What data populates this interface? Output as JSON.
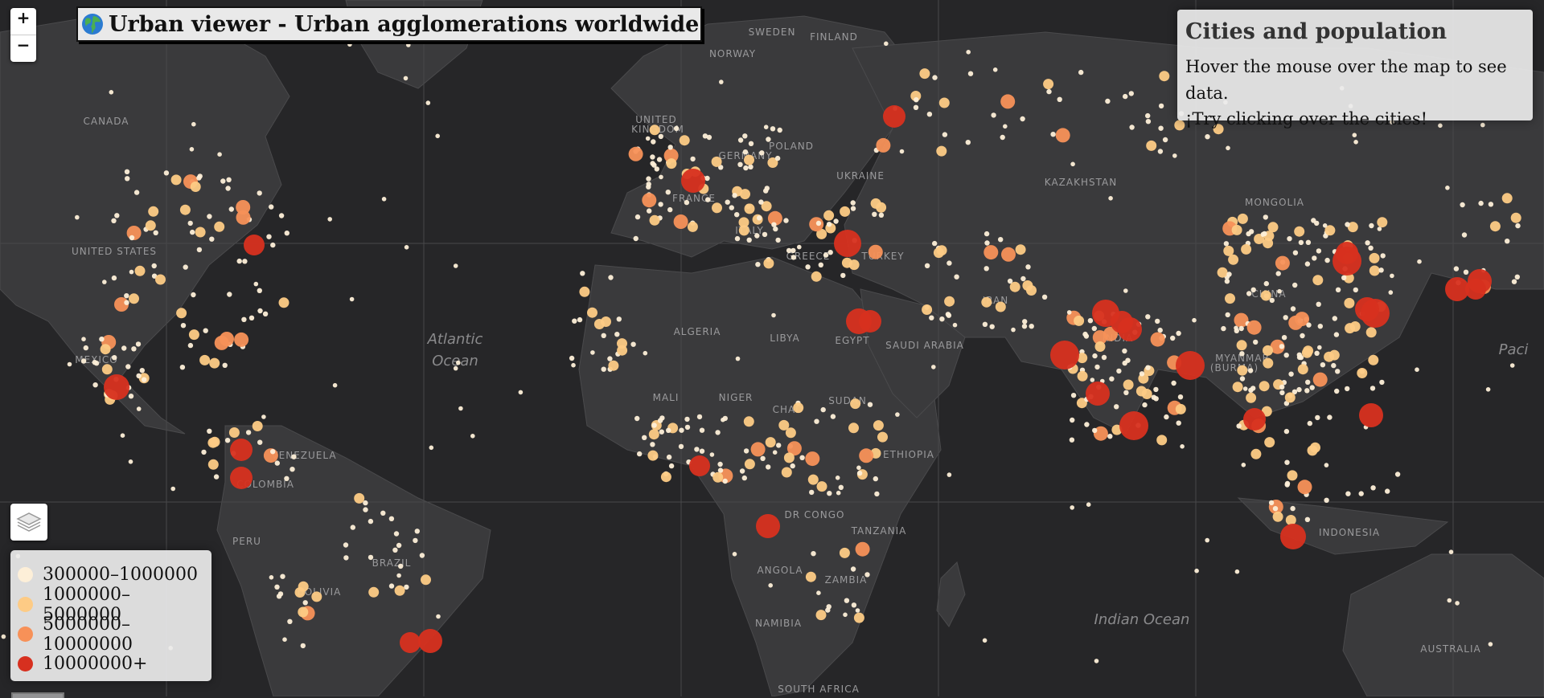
{
  "title": {
    "text": "Urban viewer - Urban agglomerations worldwide",
    "icon": "globe-icon"
  },
  "zoom": {
    "in_label": "+",
    "out_label": "−"
  },
  "infobox": {
    "heading": "Cities and population",
    "line1": "Hover the mouse over the map to see data.",
    "line2": "¡Try clicking over the cities!"
  },
  "layers": {
    "icon": "layers-icon"
  },
  "legend": {
    "items": [
      {
        "label": "300000–1000000",
        "color": "#fdefd8"
      },
      {
        "label": "1000000–5000000",
        "color": "#fdcb85"
      },
      {
        "label": "5000000–10000000",
        "color": "#f79158"
      },
      {
        "label": "10000000+",
        "color": "#d7301f"
      }
    ]
  },
  "map": {
    "background": "#262628",
    "land": "#3a3a3c",
    "ocean_labels": [
      "Atlantic",
      "Ocean",
      "Indian Ocean",
      "Paci"
    ],
    "country_labels": [
      "SWEDEN",
      "FINLAND",
      "NORWAY",
      "UNITED",
      "KINGDOM",
      "POLAND",
      "GERMANY",
      "UKRAINE",
      "FRANCE",
      "ITALY",
      "GREECE",
      "TURKEY",
      "KAZAKHSTAN",
      "MONGOLIA",
      "CANADA",
      "UNITED STATES",
      "MEXICO",
      "VENEZUELA",
      "COLOMBIA",
      "PERU",
      "BRAZIL",
      "BOLIVIA",
      "ALGERIA",
      "LIBYA",
      "EGYPT",
      "MALI",
      "NIGER",
      "CHAD",
      "SUDAN",
      "SAUDI ARABIA",
      "IRAN",
      "CHINA",
      "INDIA",
      "MYANMAR",
      "(BURMA)",
      "ETHIOPIA",
      "DR CONGO",
      "TANZANIA",
      "ANGOLA",
      "ZAMBIA",
      "NAMIBIA",
      "SOUTH AFRICA",
      "INDONESIA",
      "AUSTRALIA"
    ]
  }
}
